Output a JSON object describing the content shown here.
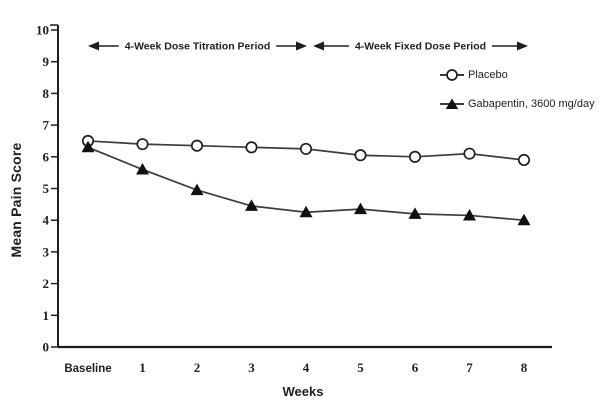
{
  "colors": {
    "ink": "#1f1f1f",
    "series_line": "#3c3c3c",
    "marker_fill": "#111111",
    "background": "#ffffff"
  },
  "chart_data": {
    "type": "line",
    "title": "",
    "xlabel": "Weeks",
    "ylabel": "Mean Pain Score",
    "x_categories": [
      "Baseline",
      "1",
      "2",
      "3",
      "4",
      "5",
      "6",
      "7",
      "8"
    ],
    "ylim": [
      0,
      10
    ],
    "yticks": [
      0,
      1,
      2,
      3,
      4,
      5,
      6,
      7,
      8,
      9,
      10
    ],
    "grid": false,
    "legend_position": "upper-right",
    "series": [
      {
        "name": "Placebo",
        "marker": "open-circle",
        "values": [
          6.5,
          6.4,
          6.35,
          6.3,
          6.25,
          6.05,
          6.0,
          6.1,
          5.9
        ]
      },
      {
        "name": "Gabapentin, 3600 mg/day",
        "marker": "filled-triangle",
        "values": [
          6.3,
          5.6,
          4.95,
          4.45,
          4.25,
          4.35,
          4.2,
          4.15,
          4.0
        ]
      }
    ],
    "annotations": [
      {
        "text": "4-Week Dose Titration Period",
        "x_start": "Baseline",
        "x_end": "4"
      },
      {
        "text": "4-Week Fixed Dose Period",
        "x_start": "4",
        "x_end": "8"
      }
    ]
  }
}
